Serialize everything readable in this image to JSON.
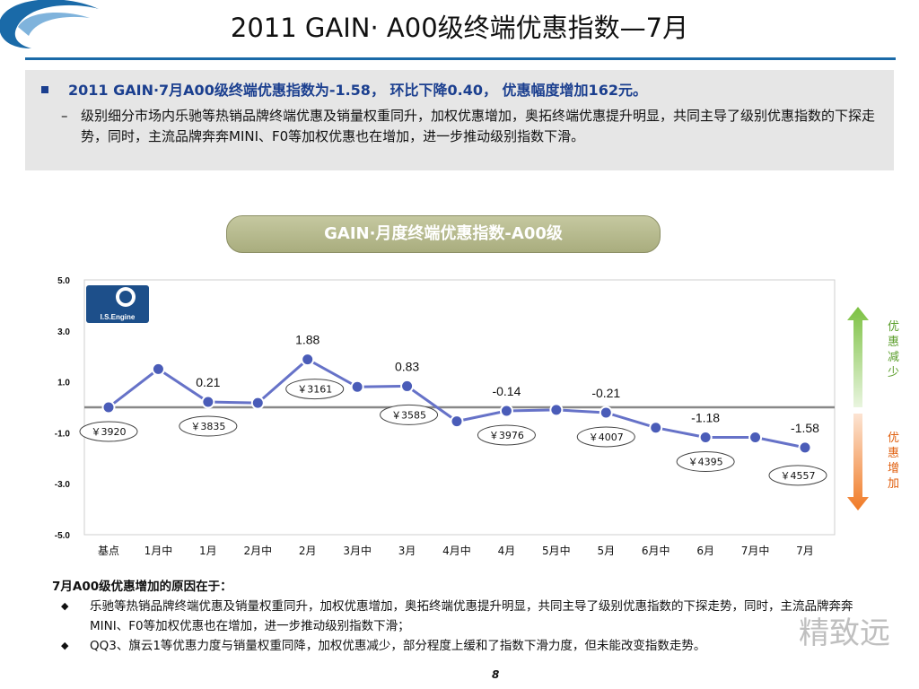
{
  "title": "2011 GAIN· A00级终端优惠指数—7月",
  "summary": {
    "headline": "2011 GAIN·7月A00级终端优惠指数为-1.58，  环比下降0.40，  优惠幅度增加162元。",
    "detail_dash": "–",
    "detail": "级别细分市场内乐驰等热销品牌终端优惠及销量权重同升，加权优惠增加，奥拓终端优惠提升明显，共同主导了级别优惠指数的下探走势，同时，主流品牌奔奔MINI、F0等加权优惠也在增加，进一步推动级别指数下滑。"
  },
  "chart_title": "GAIN·月度终端优惠指数-A00级",
  "logo_text": "I.S.Engine",
  "arrows": {
    "up_label": "优惠减少",
    "down_label": "优惠增加",
    "up_color": "#7cc142",
    "down_color": "#f07a25"
  },
  "chart_data": {
    "type": "line",
    "categories": [
      "基点",
      "1月中",
      "1月",
      "2月中",
      "2月",
      "3月中",
      "3月",
      "4月中",
      "4月",
      "5月中",
      "5月",
      "6月中",
      "6月",
      "7月中",
      "7月"
    ],
    "values": [
      0,
      1.5,
      0.21,
      0.17,
      1.88,
      0.8,
      0.83,
      -0.55,
      -0.14,
      -0.1,
      -0.21,
      -0.8,
      -1.18,
      -1.18,
      -1.58
    ],
    "point_labels": [
      "",
      "",
      "0.21",
      "",
      "1.88",
      "",
      "0.83",
      "",
      "-0.14",
      "",
      "-0.21",
      "",
      "-1.18",
      "",
      "-1.58"
    ],
    "price_tags": [
      {
        "index": 0,
        "text": "￥3920"
      },
      {
        "index": 2,
        "text": "￥3835"
      },
      {
        "index": 4,
        "text": "￥3161"
      },
      {
        "index": 6,
        "text": "￥3585"
      },
      {
        "index": 8,
        "text": "￥3976"
      },
      {
        "index": 10,
        "text": "￥4007"
      },
      {
        "index": 12,
        "text": "￥4395"
      },
      {
        "index": 14,
        "text": "￥4557"
      }
    ],
    "y_ticks": [
      "5.0",
      "3.0",
      "1.0",
      "-1.0",
      "-3.0",
      "-5.0"
    ],
    "ylim": [
      -5,
      5
    ],
    "series_color": "#6672c8",
    "marker_color": "#4a5cb8",
    "baseline_color": "#888888"
  },
  "reasons": {
    "heading": "7月A00级优惠增加的原因在于：",
    "items": [
      "乐驰等热销品牌终端优惠及销量权重同升，加权优惠增加，奥拓终端优惠提升明显，共同主导了级别优惠指数的下探走势，同时，主流品牌奔奔MINI、F0等加权优惠也在增加，进一步推动级别指数下滑；",
      "QQ3、旗云1等优惠力度与销量权重同降，加权优惠减少，部分程度上缓和了指数下滑力度，但未能改变指数走势。"
    ]
  },
  "page_number": "8",
  "watermark": "精致远"
}
